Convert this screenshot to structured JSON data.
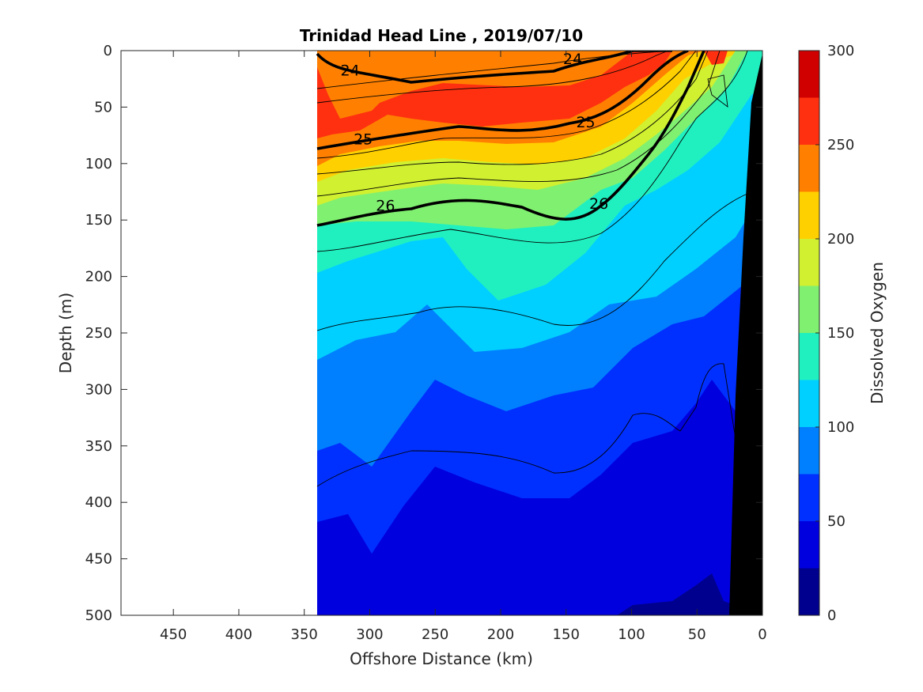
{
  "chart_data": {
    "type": "heatmap",
    "title": "Trinidad Head Line , 2019/07/10",
    "xlabel": "Offshore Distance (km)",
    "ylabel": "Depth (m)",
    "xlim": [
      490,
      0
    ],
    "ylim": [
      0,
      500
    ],
    "x_reversed": true,
    "y_reversed": true,
    "x_ticks": [
      "450",
      "400",
      "350",
      "300",
      "250",
      "200",
      "150",
      "100",
      "50",
      "0"
    ],
    "y_ticks": [
      "0",
      "50",
      "100",
      "150",
      "200",
      "250",
      "300",
      "350",
      "400",
      "450",
      "500"
    ],
    "colorbar": {
      "label": "Dissolved Oxygen",
      "range": [
        0,
        300
      ],
      "ticks": [
        "0",
        "50",
        "100",
        "150",
        "200",
        "250",
        "300"
      ],
      "levels": [
        0,
        25,
        50,
        75,
        100,
        125,
        150,
        175,
        200,
        225,
        250,
        275,
        300
      ],
      "colors": [
        "#00008f",
        "#0000df",
        "#0030ff",
        "#0080ff",
        "#00d0ff",
        "#20f0c0",
        "#80f070",
        "#d0f030",
        "#ffd000",
        "#ff8000",
        "#ff3010",
        "#d00000"
      ]
    },
    "data_extent_km": [
      340,
      0
    ],
    "bathymetry_color": "#000000",
    "contour_labels": [
      {
        "text": "24",
        "x": 315,
        "y": 17
      },
      {
        "text": "24",
        "x": 145,
        "y": 7
      },
      {
        "text": "25",
        "x": 305,
        "y": 78
      },
      {
        "text": "25",
        "x": 135,
        "y": 63
      },
      {
        "text": "26",
        "x": 288,
        "y": 137
      },
      {
        "text": "26",
        "x": 125,
        "y": 135
      }
    ],
    "colorbar_label": "Dissolved Oxygen"
  }
}
